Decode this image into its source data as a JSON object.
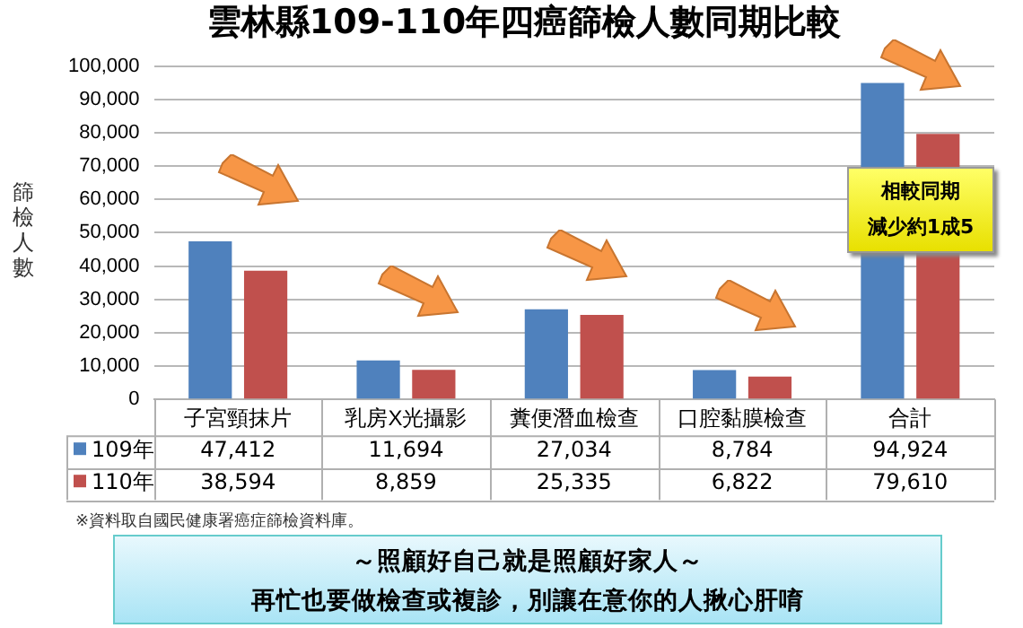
{
  "chart_data": {
    "type": "bar",
    "title": "雲林縣109-110年四癌篩檢人數同期比較",
    "ylabel": "篩檢人數",
    "categories": [
      "子宮頸抹片",
      "乳房X光攝影",
      "糞便潛血檢查",
      "口腔黏膜檢查",
      "合計"
    ],
    "series": [
      {
        "name": "109年",
        "color": "#4f81bd",
        "values": [
          47412,
          11694,
          27034,
          8784,
          94924
        ],
        "value_labels": [
          "47,412",
          "11,694",
          "27,034",
          "8,784",
          "94,924"
        ]
      },
      {
        "name": "110年",
        "color": "#c0504d",
        "values": [
          38594,
          8859,
          25335,
          6822,
          79610
        ],
        "value_labels": [
          "38,594",
          "8,859",
          "25,335",
          "6,822",
          "79,610"
        ]
      }
    ],
    "ylim": [
      0,
      100000
    ],
    "yticks": [
      0,
      {
        "value": 10000,
        "label": "10,000"
      },
      {
        "value": 20000,
        "label": "20,000"
      },
      {
        "value": 30000,
        "label": "30,000"
      },
      {
        "value": 40000,
        "label": "40,000"
      },
      {
        "value": 50000,
        "label": "50,000"
      },
      {
        "value": 60000,
        "label": "60,000"
      },
      {
        "value": 70000,
        "label": "70,000"
      },
      {
        "value": 80000,
        "label": "80,000"
      },
      {
        "value": 90000,
        "label": "90,000"
      },
      {
        "value": 100000,
        "label": "100,000"
      }
    ],
    "grid": "y",
    "legend": "bottom",
    "annotations": [
      "相較同期",
      "減少約1成5",
      "※資料取自國民健康署癌症篩檢資料庫。",
      "～照顧好自己就是照顧好家人～",
      "再忙也要做檢查或複診，別讓在意你的人揪心肝唷"
    ]
  }
}
